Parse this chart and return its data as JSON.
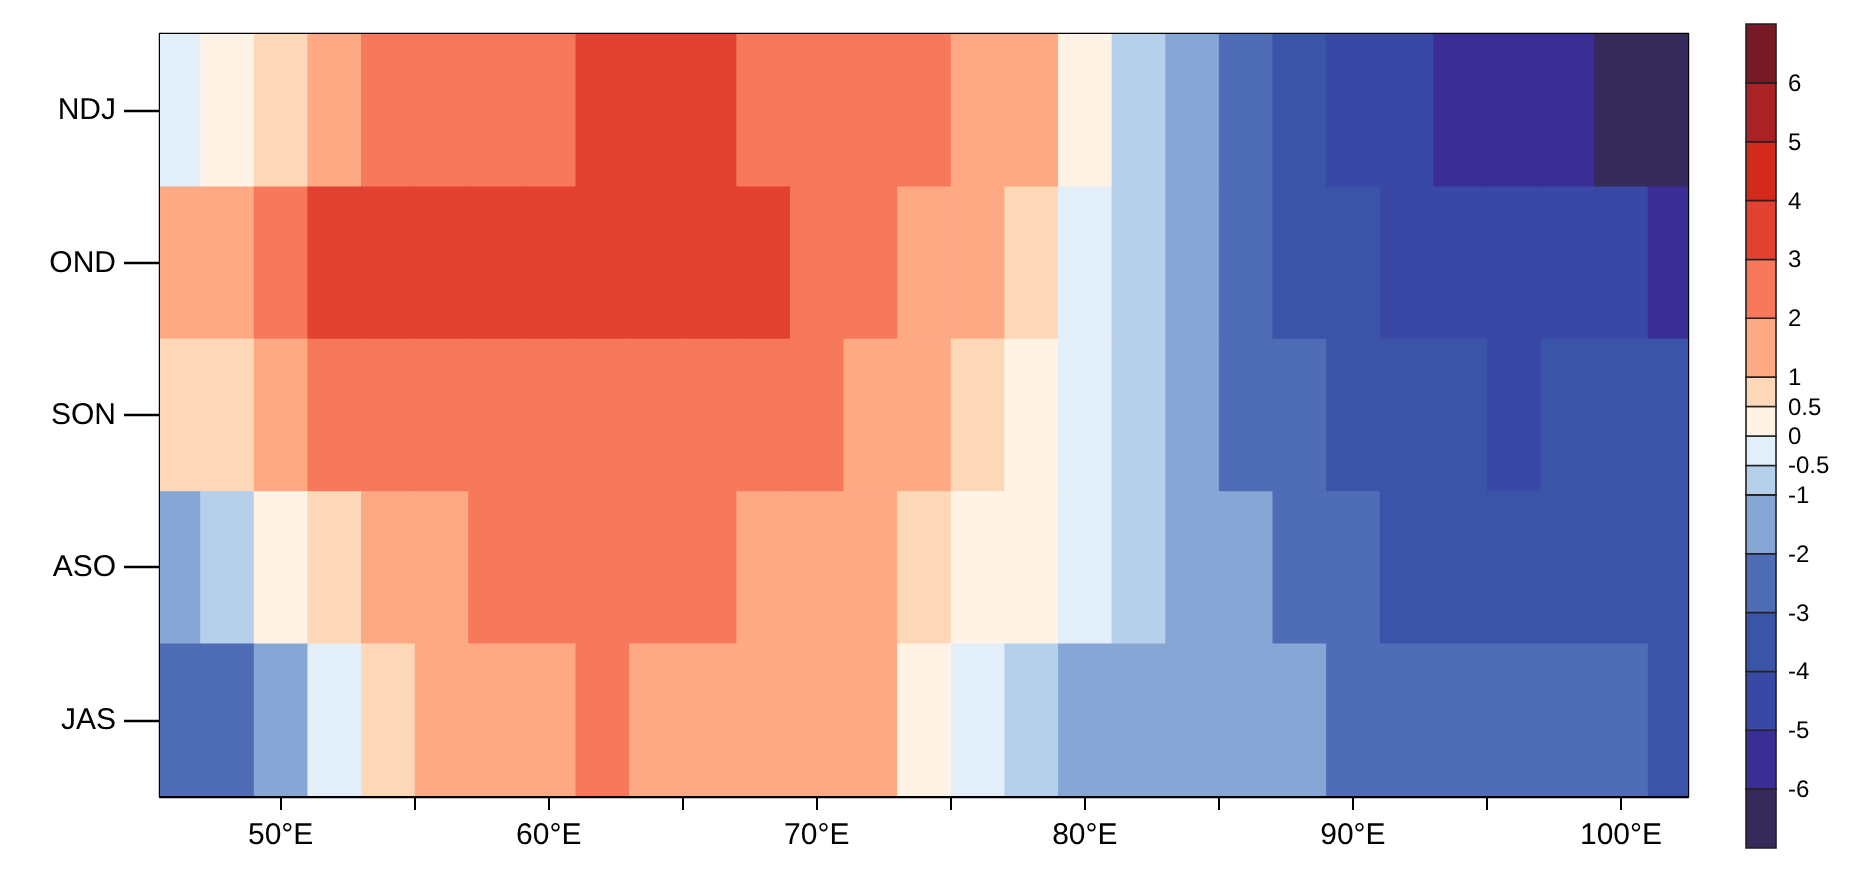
{
  "chart_data": {
    "type": "heatmap",
    "x": [
      46,
      48,
      50,
      52,
      54,
      56,
      58,
      60,
      62,
      64,
      66,
      68,
      70,
      72,
      74,
      76,
      78,
      80,
      82,
      84,
      86,
      88,
      90,
      92,
      94,
      96,
      98,
      100,
      102
    ],
    "y_categories": [
      "NDJ",
      "OND",
      "SON",
      "ASO",
      "JAS"
    ],
    "cells": [
      [
        -0.25,
        0.25,
        0.75,
        1.5,
        2.5,
        2.5,
        2.5,
        2.5,
        3.5,
        3.5,
        3.5,
        2.5,
        2.5,
        2.5,
        2.5,
        1.5,
        1.5,
        0.25,
        -0.75,
        -1.5,
        -2.5,
        -3.5,
        -4.5,
        -4.5,
        -5.5,
        -5.5,
        -5.5,
        -6.5,
        -6.5
      ],
      [
        1.5,
        1.5,
        2.5,
        3.5,
        3.5,
        3.5,
        3.5,
        3.5,
        3.5,
        3.5,
        3.5,
        3.5,
        2.5,
        2.5,
        1.5,
        1.5,
        0.75,
        -0.25,
        -0.75,
        -1.5,
        -2.5,
        -3.5,
        -3.5,
        -4.5,
        -4.5,
        -4.5,
        -4.5,
        -4.5,
        -5.5
      ],
      [
        0.75,
        0.75,
        1.5,
        2.5,
        2.5,
        2.5,
        2.5,
        2.5,
        2.5,
        2.5,
        2.5,
        2.5,
        2.5,
        1.5,
        1.5,
        0.75,
        0.25,
        -0.25,
        -0.75,
        -1.5,
        -2.5,
        -2.5,
        -3.5,
        -3.5,
        -3.5,
        -4.5,
        -3.5,
        -3.5,
        -3.5
      ],
      [
        -1.5,
        -0.75,
        0.25,
        0.75,
        1.5,
        1.5,
        2.5,
        2.5,
        2.5,
        2.5,
        2.5,
        1.5,
        1.5,
        1.5,
        0.75,
        0.25,
        0.25,
        -0.25,
        -0.75,
        -1.5,
        -1.5,
        -2.5,
        -2.5,
        -3.5,
        -3.5,
        -3.5,
        -3.5,
        -3.5,
        -3.5
      ],
      [
        -2.5,
        -2.5,
        -1.5,
        -0.25,
        0.75,
        1.5,
        1.5,
        1.5,
        2.5,
        1.5,
        1.5,
        1.5,
        1.5,
        1.5,
        0.25,
        -0.25,
        -0.75,
        -1.5,
        -1.5,
        -1.5,
        -1.5,
        -1.5,
        -2.5,
        -2.5,
        -2.5,
        -2.5,
        -2.5,
        -2.5,
        -3.5
      ]
    ],
    "xlim": [
      45.5,
      102.5
    ],
    "xticks": [
      {
        "value": 50,
        "label": "50°E"
      },
      {
        "value": 55,
        "label": null
      },
      {
        "value": 60,
        "label": "60°E"
      },
      {
        "value": 65,
        "label": null
      },
      {
        "value": 70,
        "label": "70°E"
      },
      {
        "value": 75,
        "label": null
      },
      {
        "value": 80,
        "label": "80°E"
      },
      {
        "value": 85,
        "label": null
      },
      {
        "value": 90,
        "label": "90°E"
      },
      {
        "value": 95,
        "label": null
      },
      {
        "value": 100,
        "label": "100°E"
      }
    ],
    "clim": [
      -7,
      7
    ],
    "cticks": [
      -6,
      -5,
      -4,
      -3,
      -2,
      -1,
      -0.5,
      0,
      0.5,
      1,
      2,
      3,
      4,
      5,
      6
    ]
  }
}
